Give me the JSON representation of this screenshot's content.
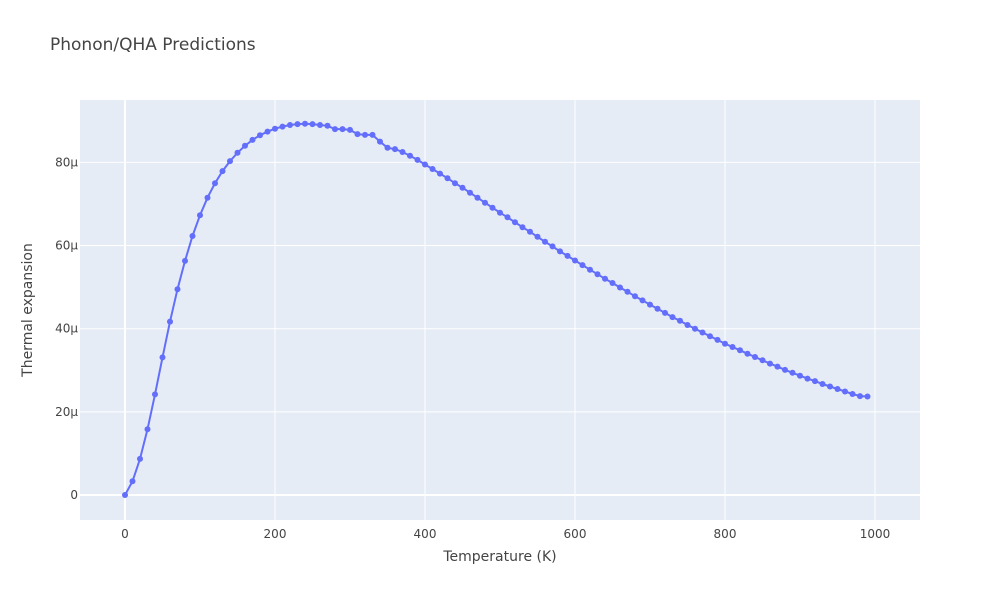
{
  "chart_data": {
    "type": "line",
    "title": "Phonon/QHA Predictions",
    "xlabel": "Temperature (K)",
    "ylabel": "Thermal expansion",
    "xlim": [
      -60,
      1060
    ],
    "ylim": [
      -6e-06,
      9.5e-05
    ],
    "x_ticks": [
      0,
      200,
      400,
      600,
      800,
      1000
    ],
    "x_tick_labels": [
      "0",
      "200",
      "400",
      "600",
      "800",
      "1000"
    ],
    "y_ticks": [
      0,
      2e-05,
      4e-05,
      6e-05,
      8e-05
    ],
    "y_tick_labels": [
      "0",
      "20µ",
      "40µ",
      "60µ",
      "80µ"
    ],
    "grid": true,
    "line_color": "#636efa",
    "plot_background": "#e5ecf6",
    "series": [
      {
        "x": [
          0,
          10,
          20,
          30,
          40,
          50,
          60,
          70,
          80,
          90,
          100,
          110,
          120,
          130,
          140,
          150,
          160,
          170,
          180,
          190,
          200,
          210,
          220,
          230,
          240,
          250,
          260,
          270,
          280,
          290,
          300,
          310,
          320,
          330,
          340,
          350,
          360,
          370,
          380,
          390,
          400,
          410,
          420,
          430,
          440,
          450,
          460,
          470,
          480,
          490,
          500,
          510,
          520,
          530,
          540,
          550,
          560,
          570,
          580,
          590,
          600,
          610,
          620,
          630,
          640,
          650,
          660,
          670,
          680,
          690,
          700,
          710,
          720,
          730,
          740,
          750,
          760,
          770,
          780,
          790,
          800,
          810,
          820,
          830,
          840,
          850,
          860,
          870,
          880,
          890,
          900,
          910,
          920,
          930,
          940,
          950,
          960,
          970,
          980,
          990
        ],
        "values": [
          0,
          3.3e-06,
          8.7e-06,
          1.58e-05,
          2.42e-05,
          3.31e-05,
          4.17e-05,
          4.95e-05,
          5.63e-05,
          6.23e-05,
          6.73e-05,
          7.15e-05,
          7.5e-05,
          7.79e-05,
          8.03e-05,
          8.23e-05,
          8.4e-05,
          8.54e-05,
          8.65e-05,
          8.74e-05,
          8.81e-05,
          8.86e-05,
          8.9e-05,
          8.92e-05,
          8.93e-05,
          8.92e-05,
          8.9e-05,
          8.88e-05,
          8.8e-05,
          8.8e-05,
          8.78e-05,
          8.68e-05,
          8.66e-05,
          8.66e-05,
          8.5e-05,
          8.35e-05,
          8.32e-05,
          8.25e-05,
          8.16e-05,
          8.06e-05,
          7.95e-05,
          7.84e-05,
          7.73e-05,
          7.62e-05,
          7.5e-05,
          7.39e-05,
          7.27e-05,
          7.15e-05,
          7.03e-05,
          6.91e-05,
          6.79e-05,
          6.68e-05,
          6.56e-05,
          6.44e-05,
          6.33e-05,
          6.21e-05,
          6.09e-05,
          5.98e-05,
          5.86e-05,
          5.75e-05,
          5.64e-05,
          5.53e-05,
          5.42e-05,
          5.31e-05,
          5.2e-05,
          5.1e-05,
          4.99e-05,
          4.89e-05,
          4.78e-05,
          4.68e-05,
          4.58e-05,
          4.48e-05,
          4.38e-05,
          4.28e-05,
          4.19e-05,
          4.09e-05,
          4e-05,
          3.91e-05,
          3.82e-05,
          3.73e-05,
          3.64e-05,
          3.56e-05,
          3.48e-05,
          3.4e-05,
          3.32e-05,
          3.24e-05,
          3.16e-05,
          3.09e-05,
          3.01e-05,
          2.94e-05,
          2.87e-05,
          2.8e-05,
          2.74e-05,
          2.67e-05,
          2.61e-05,
          2.55e-05,
          2.49e-05,
          2.43e-05,
          2.38e-05,
          2.37e-05
        ]
      }
    ]
  }
}
